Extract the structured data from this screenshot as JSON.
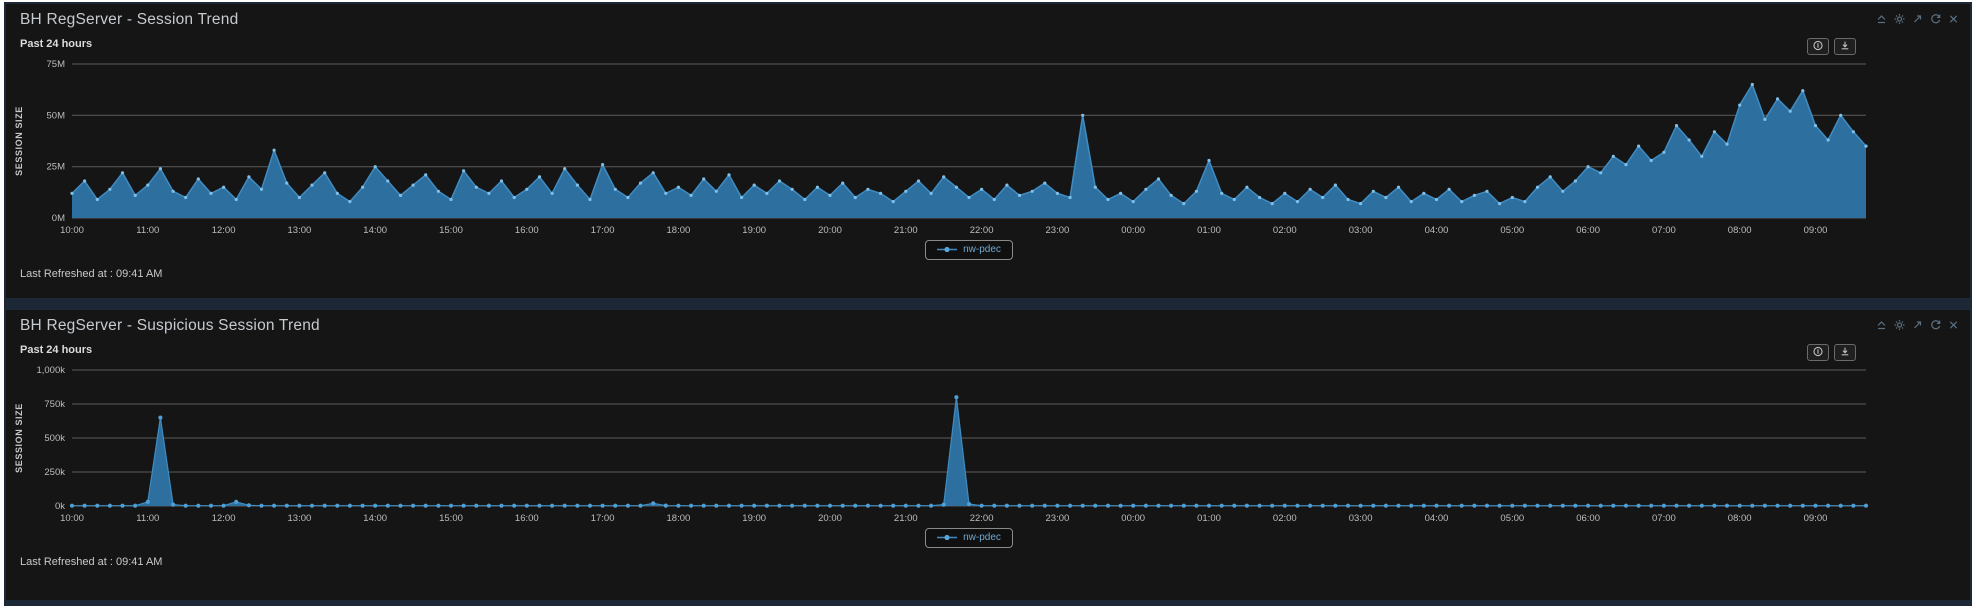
{
  "dashboard": {
    "panels": [
      {
        "title": "BH RegServer - Session Trend",
        "subtitle": "Past 24 hours",
        "legend_label": "nw-pdec",
        "last_refreshed": "Last Refreshed at : 09:41 AM",
        "header_icons": [
          "collapse-icon",
          "settings-gear-icon",
          "expand-icon",
          "refresh-icon",
          "close-icon"
        ],
        "chart_buttons": [
          "info-circle-button",
          "download-button"
        ]
      },
      {
        "title": "BH RegServer - Suspicious Session Trend",
        "subtitle": "Past 24 hours",
        "legend_label": "nw-pdec",
        "last_refreshed": "Last Refreshed at : 09:41 AM",
        "header_icons": [
          "collapse-icon",
          "settings-gear-icon",
          "expand-icon",
          "refresh-icon",
          "close-icon"
        ],
        "chart_buttons": [
          "info-circle-button",
          "download-button"
        ]
      }
    ]
  },
  "colors": {
    "frame": "#1c2836",
    "panel_bg": "#151515",
    "grid": "#5c5c5c",
    "area_fill": "#2d6f9f",
    "line": "#3f8cc2",
    "marker": "#7fc0ea",
    "legend_text": "#6fa8cf",
    "icon_gray": "#5b7080"
  },
  "chart_data": [
    {
      "type": "area",
      "title": "BH RegServer - Session Trend",
      "timeframe": "Past 24 hours",
      "ylabel": "SESSION SIZE",
      "value_unit": "M",
      "ylim": [
        0,
        75
      ],
      "yticks": [
        "0M",
        "25M",
        "50M",
        "75M"
      ],
      "ytick_values": [
        0,
        25,
        50,
        75
      ],
      "grid": "horizontal",
      "legend_position": "bottom-center",
      "x_start": "10:00",
      "x_end": "09:40",
      "points_per_hour": 6,
      "x_labels": [
        "10:00",
        "11:00",
        "12:00",
        "13:00",
        "14:00",
        "15:00",
        "16:00",
        "17:00",
        "18:00",
        "19:00",
        "20:00",
        "21:00",
        "22:00",
        "23:00",
        "00:00",
        "01:00",
        "02:00",
        "03:00",
        "04:00",
        "05:00",
        "06:00",
        "07:00",
        "08:00",
        "09:00"
      ],
      "area_color": "#2d6f9f",
      "line_color": "#3f8cc2",
      "marker_color": "#7fc0ea",
      "line_width": 1.5,
      "marker_radius": 1.6,
      "series": [
        {
          "name": "nw-pdec",
          "values": [
            12,
            18,
            9,
            14,
            22,
            11,
            16,
            24,
            13,
            10,
            19,
            12,
            15,
            9,
            20,
            14,
            33,
            17,
            10,
            16,
            22,
            12,
            8,
            15,
            25,
            18,
            11,
            16,
            21,
            13,
            9,
            23,
            15,
            12,
            18,
            10,
            14,
            20,
            12,
            24,
            16,
            9,
            26,
            14,
            10,
            17,
            22,
            12,
            15,
            11,
            19,
            13,
            21,
            10,
            16,
            12,
            18,
            14,
            9,
            15,
            11,
            17,
            10,
            14,
            12,
            8,
            13,
            18,
            12,
            20,
            15,
            10,
            14,
            9,
            16,
            11,
            13,
            17,
            12,
            10,
            50,
            15,
            9,
            12,
            8,
            14,
            19,
            11,
            7,
            13,
            28,
            12,
            9,
            15,
            10,
            7,
            12,
            8,
            14,
            10,
            16,
            9,
            7,
            13,
            10,
            15,
            8,
            12,
            9,
            14,
            8,
            11,
            13,
            7,
            10,
            8,
            15,
            20,
            13,
            18,
            25,
            22,
            30,
            26,
            35,
            28,
            32,
            45,
            38,
            30,
            42,
            36,
            55,
            65,
            48,
            58,
            52,
            62,
            45,
            38,
            50,
            42,
            35
          ]
        }
      ]
    },
    {
      "type": "area",
      "title": "BH RegServer - Suspicious Session Trend",
      "timeframe": "Past 24 hours",
      "ylabel": "SESSION SIZE",
      "value_unit": "k",
      "ylim": [
        0,
        1000
      ],
      "yticks": [
        "0k",
        "250k",
        "500k",
        "750k",
        "1,000k"
      ],
      "ytick_values": [
        0,
        250,
        500,
        750,
        1000
      ],
      "grid": "horizontal",
      "legend_position": "bottom-center",
      "x_start": "10:00",
      "x_end": "09:40",
      "points_per_hour": 6,
      "x_labels": [
        "10:00",
        "11:00",
        "12:00",
        "13:00",
        "14:00",
        "15:00",
        "16:00",
        "17:00",
        "18:00",
        "19:00",
        "20:00",
        "21:00",
        "22:00",
        "23:00",
        "00:00",
        "01:00",
        "02:00",
        "03:00",
        "04:00",
        "05:00",
        "06:00",
        "07:00",
        "08:00",
        "09:00"
      ],
      "area_color": "#2d6f9f",
      "line_color": "#3f8cc2",
      "marker_color": "#4f9fd4",
      "line_width": 1.2,
      "marker_radius": 2.1,
      "series": [
        {
          "name": "nw-pdec",
          "values": [
            2,
            2,
            2,
            2,
            2,
            2,
            30,
            650,
            10,
            2,
            2,
            2,
            2,
            30,
            5,
            2,
            2,
            2,
            2,
            2,
            2,
            2,
            2,
            2,
            2,
            2,
            2,
            2,
            2,
            2,
            2,
            2,
            2,
            2,
            2,
            2,
            2,
            2,
            2,
            2,
            2,
            2,
            2,
            2,
            2,
            2,
            20,
            3,
            2,
            2,
            2,
            2,
            2,
            2,
            2,
            2,
            2,
            2,
            2,
            2,
            2,
            2,
            2,
            2,
            2,
            2,
            2,
            2,
            2,
            10,
            800,
            15,
            2,
            2,
            2,
            2,
            2,
            2,
            2,
            2,
            2,
            2,
            2,
            2,
            2,
            2,
            2,
            2,
            2,
            2,
            2,
            2,
            2,
            2,
            2,
            2,
            2,
            2,
            2,
            2,
            2,
            2,
            2,
            2,
            2,
            2,
            2,
            2,
            2,
            2,
            2,
            2,
            2,
            2,
            2,
            2,
            2,
            2,
            2,
            2,
            2,
            2,
            2,
            2,
            2,
            2,
            2,
            2,
            2,
            2,
            2,
            2,
            2,
            2,
            2,
            2,
            2,
            2,
            2,
            2,
            2,
            2,
            2
          ]
        }
      ]
    }
  ]
}
